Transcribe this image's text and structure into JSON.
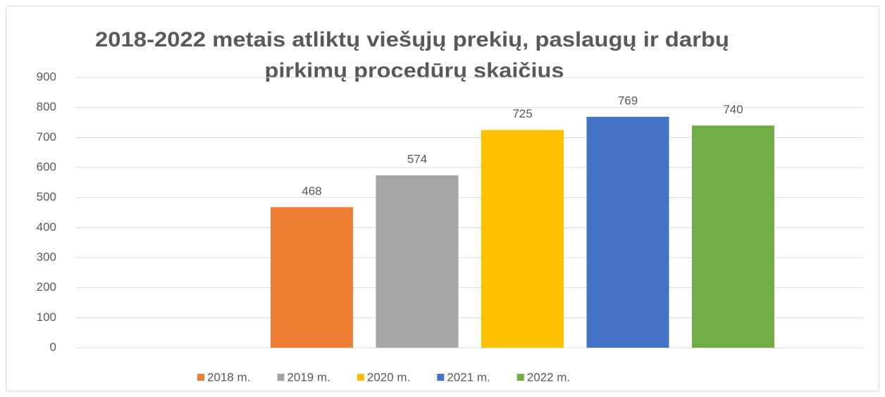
{
  "chart_data": {
    "type": "bar",
    "title": [
      "2018-2022 metais atliktų viešųjų prekių, paslaugų ir darbų",
      "pirkimų procedūrų skaičius"
    ],
    "categories": [
      null
    ],
    "series": [
      {
        "name": "2018 m.",
        "color": "#ed7d31",
        "values": [
          468
        ]
      },
      {
        "name": "2019 m.",
        "color": "#a5a5a5",
        "values": [
          574
        ]
      },
      {
        "name": "2020 m.",
        "color": "#ffc000",
        "values": [
          725
        ]
      },
      {
        "name": "2021 m.",
        "color": "#4472c4",
        "values": [
          769
        ]
      },
      {
        "name": "2022 m.",
        "color": "#70ad47",
        "values": [
          740
        ]
      }
    ],
    "ylim": [
      0,
      900
    ],
    "yticks": [
      0,
      100,
      200,
      300,
      400,
      500,
      600,
      700,
      800,
      900
    ],
    "grid": true,
    "legend": "bottom"
  }
}
